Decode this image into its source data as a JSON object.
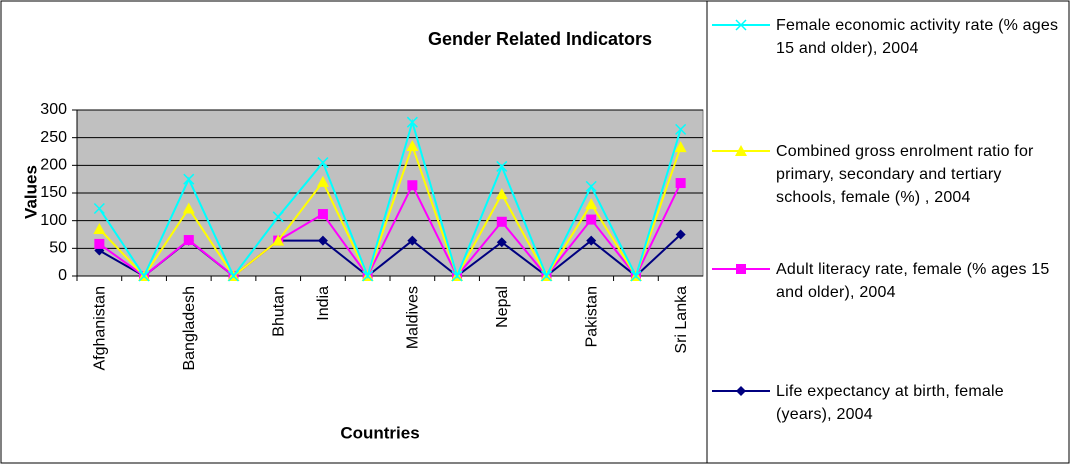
{
  "chart_data": {
    "type": "line",
    "stacked": true,
    "title": "Gender Related Indicators",
    "xlabel": "Countries",
    "ylabel": "Values",
    "categories": [
      "Afghanistan",
      null,
      "Bangladesh",
      null,
      "Bhutan",
      "India",
      null,
      "Maldives",
      null,
      "Nepal",
      null,
      "Pakistan",
      null,
      "Sri Lanka"
    ],
    "series": [
      {
        "name": "Life expectancy at birth, female (years), 2004",
        "color": "#000080",
        "marker": "diamond",
        "values": [
          46,
          0,
          64,
          0,
          64,
          64,
          0,
          64,
          0,
          61,
          0,
          64,
          0,
          75
        ]
      },
      {
        "name": "Adult literacy rate, female (% ages 15 and older), 2004",
        "color": "#ff00ff",
        "marker": "square",
        "values": [
          12,
          0,
          1,
          0,
          0,
          48,
          0,
          100,
          0,
          37,
          0,
          38,
          0,
          93
        ]
      },
      {
        "name": "Combined gross enrolment ratio for primary, secondary and tertiary schools, female (%) , 2004",
        "color": "#ffff00",
        "marker": "triangle",
        "values": [
          27,
          0,
          57,
          0,
          0,
          58,
          0,
          71,
          0,
          50,
          0,
          28,
          0,
          65
        ]
      },
      {
        "name": "Female economic activity rate (% ages 15 and older), 2004",
        "color": "#00ffff",
        "marker": "x",
        "values": [
          37,
          0,
          53,
          0,
          43,
          35,
          0,
          43,
          0,
          50,
          0,
          32,
          0,
          32
        ]
      }
    ],
    "ylim": [
      0,
      300
    ],
    "yticks": [
      0,
      50,
      100,
      150,
      200,
      250,
      300
    ],
    "grid": true,
    "plot_background": "#c0c0c0"
  }
}
